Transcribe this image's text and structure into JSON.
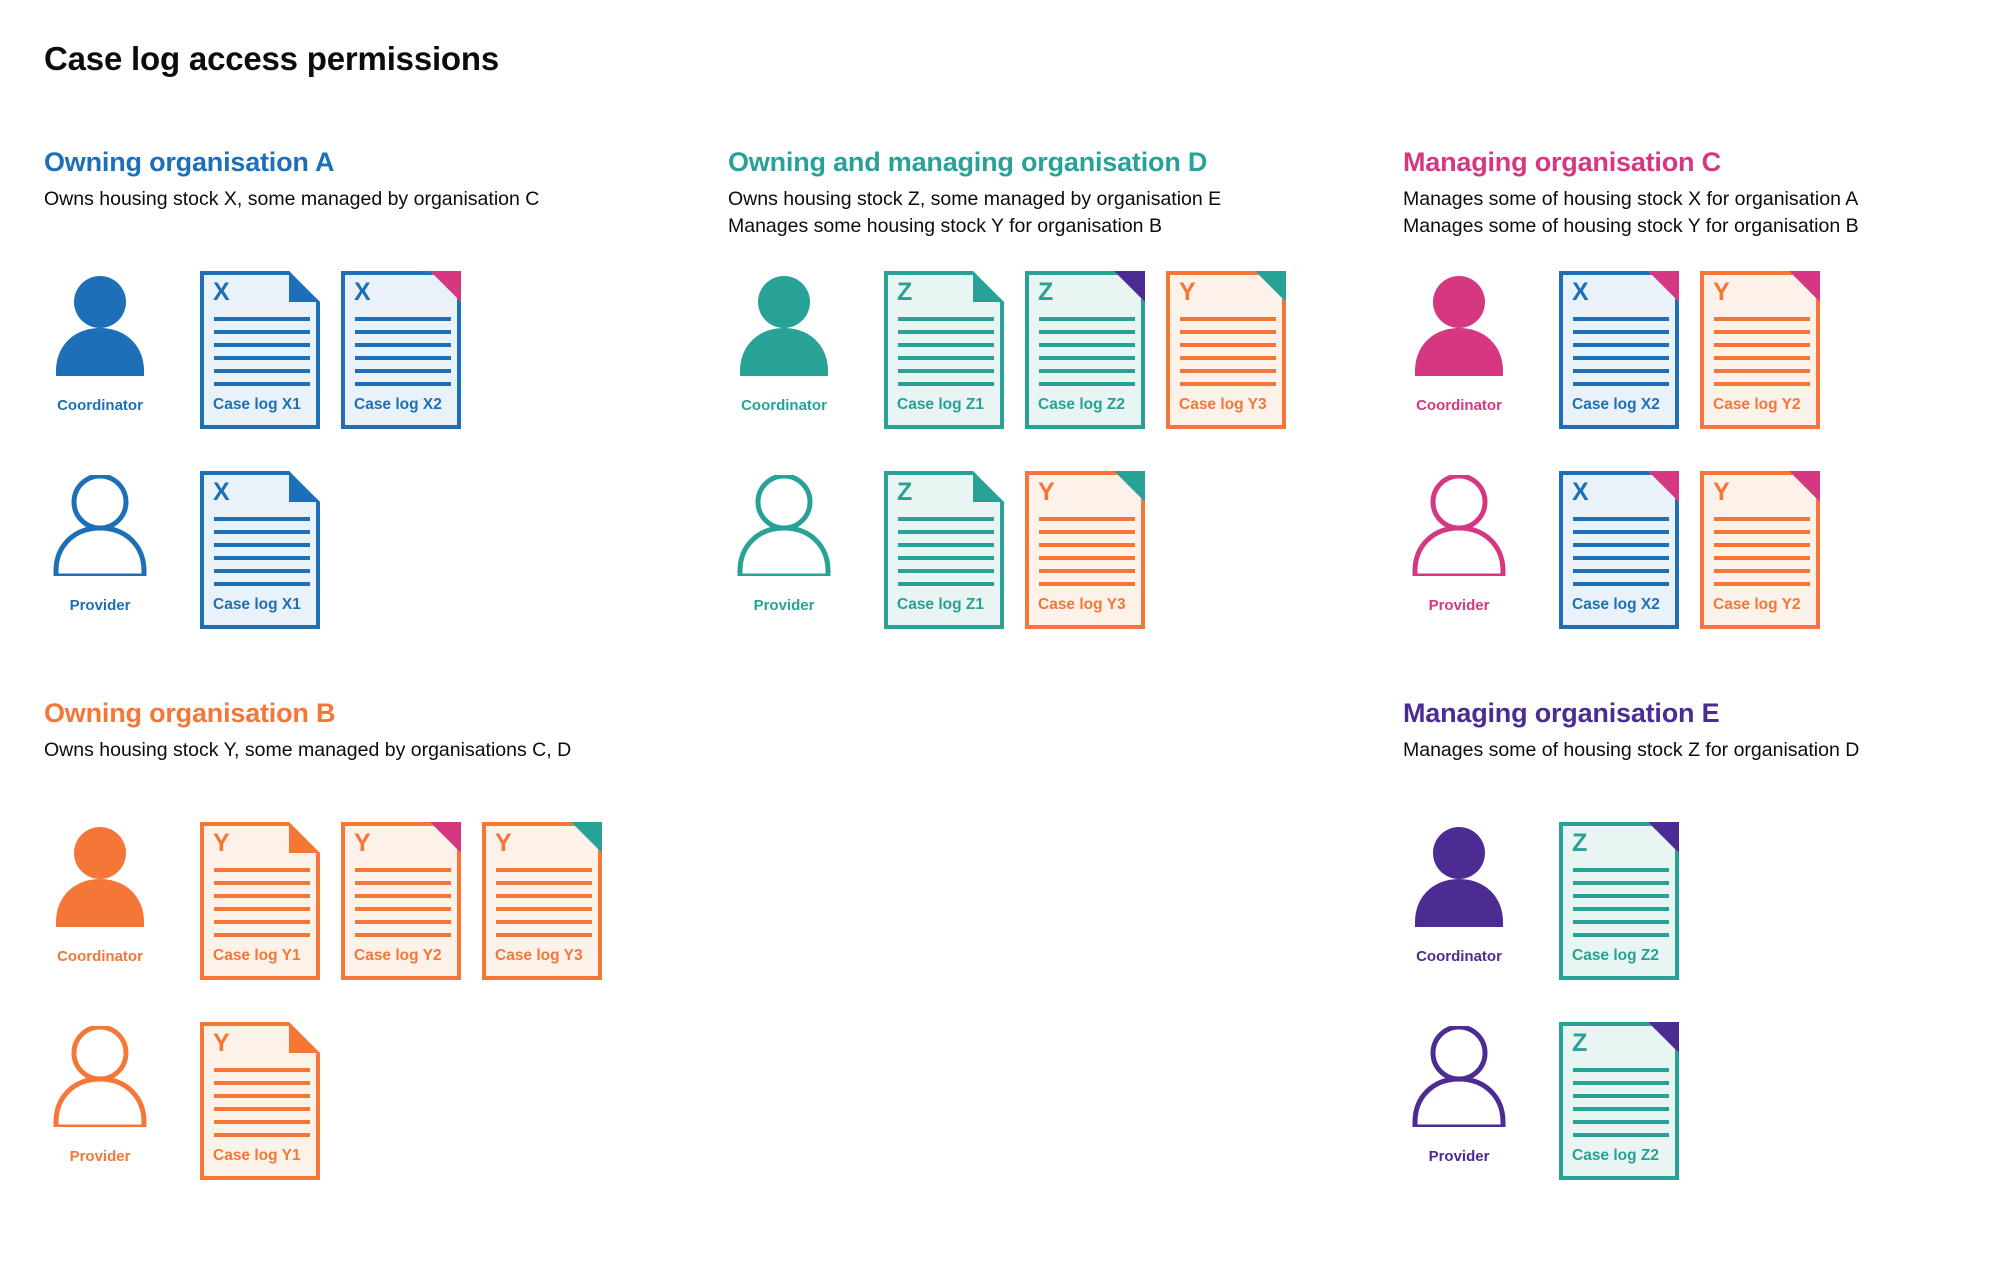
{
  "title": "Case log access permissions",
  "labels": {
    "coordinator": "Coordinator",
    "provider": "Provider"
  },
  "colors": {
    "blue": {
      "main": "#1d70b8",
      "tint": "#eaf2f9"
    },
    "teal": {
      "main": "#28a197",
      "tint": "#e9f5f3"
    },
    "orange": {
      "main": "#f47738",
      "tint": "#fdf2ea"
    },
    "pink": {
      "main": "#d53880"
    },
    "purple": {
      "main": "#4c2c92"
    },
    "text": {
      "main": "#0b0c0c"
    }
  },
  "sections": [
    {
      "id": "org-a",
      "heading": "Owning organisation A",
      "color": "blue",
      "description_lines": [
        "Owns housing stock X, some managed by organisation C"
      ],
      "rows": [
        {
          "person": "coordinator",
          "person_style": "filled",
          "docs": [
            {
              "letter": "X",
              "label": "Case log X1",
              "doc_color": "blue",
              "fold_color": "blue"
            },
            {
              "letter": "X",
              "label": "Case log X2",
              "doc_color": "blue",
              "fold_color": "pink"
            }
          ]
        },
        {
          "person": "provider",
          "person_style": "outline",
          "docs": [
            {
              "letter": "X",
              "label": "Case log X1",
              "doc_color": "blue",
              "fold_color": "blue"
            }
          ]
        }
      ]
    },
    {
      "id": "org-d",
      "heading": "Owning and managing organisation D",
      "color": "teal",
      "description_lines": [
        "Owns housing stock Z, some managed by organisation E",
        "Manages some housing stock Y for organisation B"
      ],
      "rows": [
        {
          "person": "coordinator",
          "person_style": "filled",
          "docs": [
            {
              "letter": "Z",
              "label": "Case log Z1",
              "doc_color": "teal",
              "fold_color": "teal"
            },
            {
              "letter": "Z",
              "label": "Case log Z2",
              "doc_color": "teal",
              "fold_color": "purple"
            },
            {
              "letter": "Y",
              "label": "Case log Y3",
              "doc_color": "orange",
              "fold_color": "teal"
            }
          ]
        },
        {
          "person": "provider",
          "person_style": "outline",
          "docs": [
            {
              "letter": "Z",
              "label": "Case log Z1",
              "doc_color": "teal",
              "fold_color": "teal"
            },
            {
              "letter": "Y",
              "label": "Case log Y3",
              "doc_color": "orange",
              "fold_color": "teal"
            }
          ]
        }
      ]
    },
    {
      "id": "org-c",
      "heading": "Managing organisation C",
      "color": "pink",
      "description_lines": [
        "Manages some of housing stock X for organisation A",
        "Manages some of housing stock Y for organisation B"
      ],
      "rows": [
        {
          "person": "coordinator",
          "person_style": "filled",
          "docs": [
            {
              "letter": "X",
              "label": "Case log X2",
              "doc_color": "blue",
              "fold_color": "pink"
            },
            {
              "letter": "Y",
              "label": "Case log Y2",
              "doc_color": "orange",
              "fold_color": "pink"
            }
          ]
        },
        {
          "person": "provider",
          "person_style": "outline",
          "docs": [
            {
              "letter": "X",
              "label": "Case log X2",
              "doc_color": "blue",
              "fold_color": "pink"
            },
            {
              "letter": "Y",
              "label": "Case log Y2",
              "doc_color": "orange",
              "fold_color": "pink"
            }
          ]
        }
      ]
    },
    {
      "id": "org-b",
      "heading": "Owning organisation B",
      "color": "orange",
      "description_lines": [
        "Owns housing stock Y, some managed by organisations C, D"
      ],
      "rows": [
        {
          "person": "coordinator",
          "person_style": "filled",
          "docs": [
            {
              "letter": "Y",
              "label": "Case log Y1",
              "doc_color": "orange",
              "fold_color": "orange"
            },
            {
              "letter": "Y",
              "label": "Case log Y2",
              "doc_color": "orange",
              "fold_color": "pink"
            },
            {
              "letter": "Y",
              "label": "Case log Y3",
              "doc_color": "orange",
              "fold_color": "teal"
            }
          ]
        },
        {
          "person": "provider",
          "person_style": "outline",
          "docs": [
            {
              "letter": "Y",
              "label": "Case log Y1",
              "doc_color": "orange",
              "fold_color": "orange"
            }
          ]
        }
      ]
    },
    {
      "id": "org-e",
      "heading": "Managing organisation E",
      "color": "purple",
      "description_lines": [
        "Manages some of housing stock Z for organisation D"
      ],
      "rows": [
        {
          "person": "coordinator",
          "person_style": "filled",
          "docs": [
            {
              "letter": "Z",
              "label": "Case log Z2",
              "doc_color": "teal",
              "fold_color": "purple"
            }
          ]
        },
        {
          "person": "provider",
          "person_style": "outline",
          "docs": [
            {
              "letter": "Z",
              "label": "Case log Z2",
              "doc_color": "teal",
              "fold_color": "purple"
            }
          ]
        }
      ]
    }
  ]
}
